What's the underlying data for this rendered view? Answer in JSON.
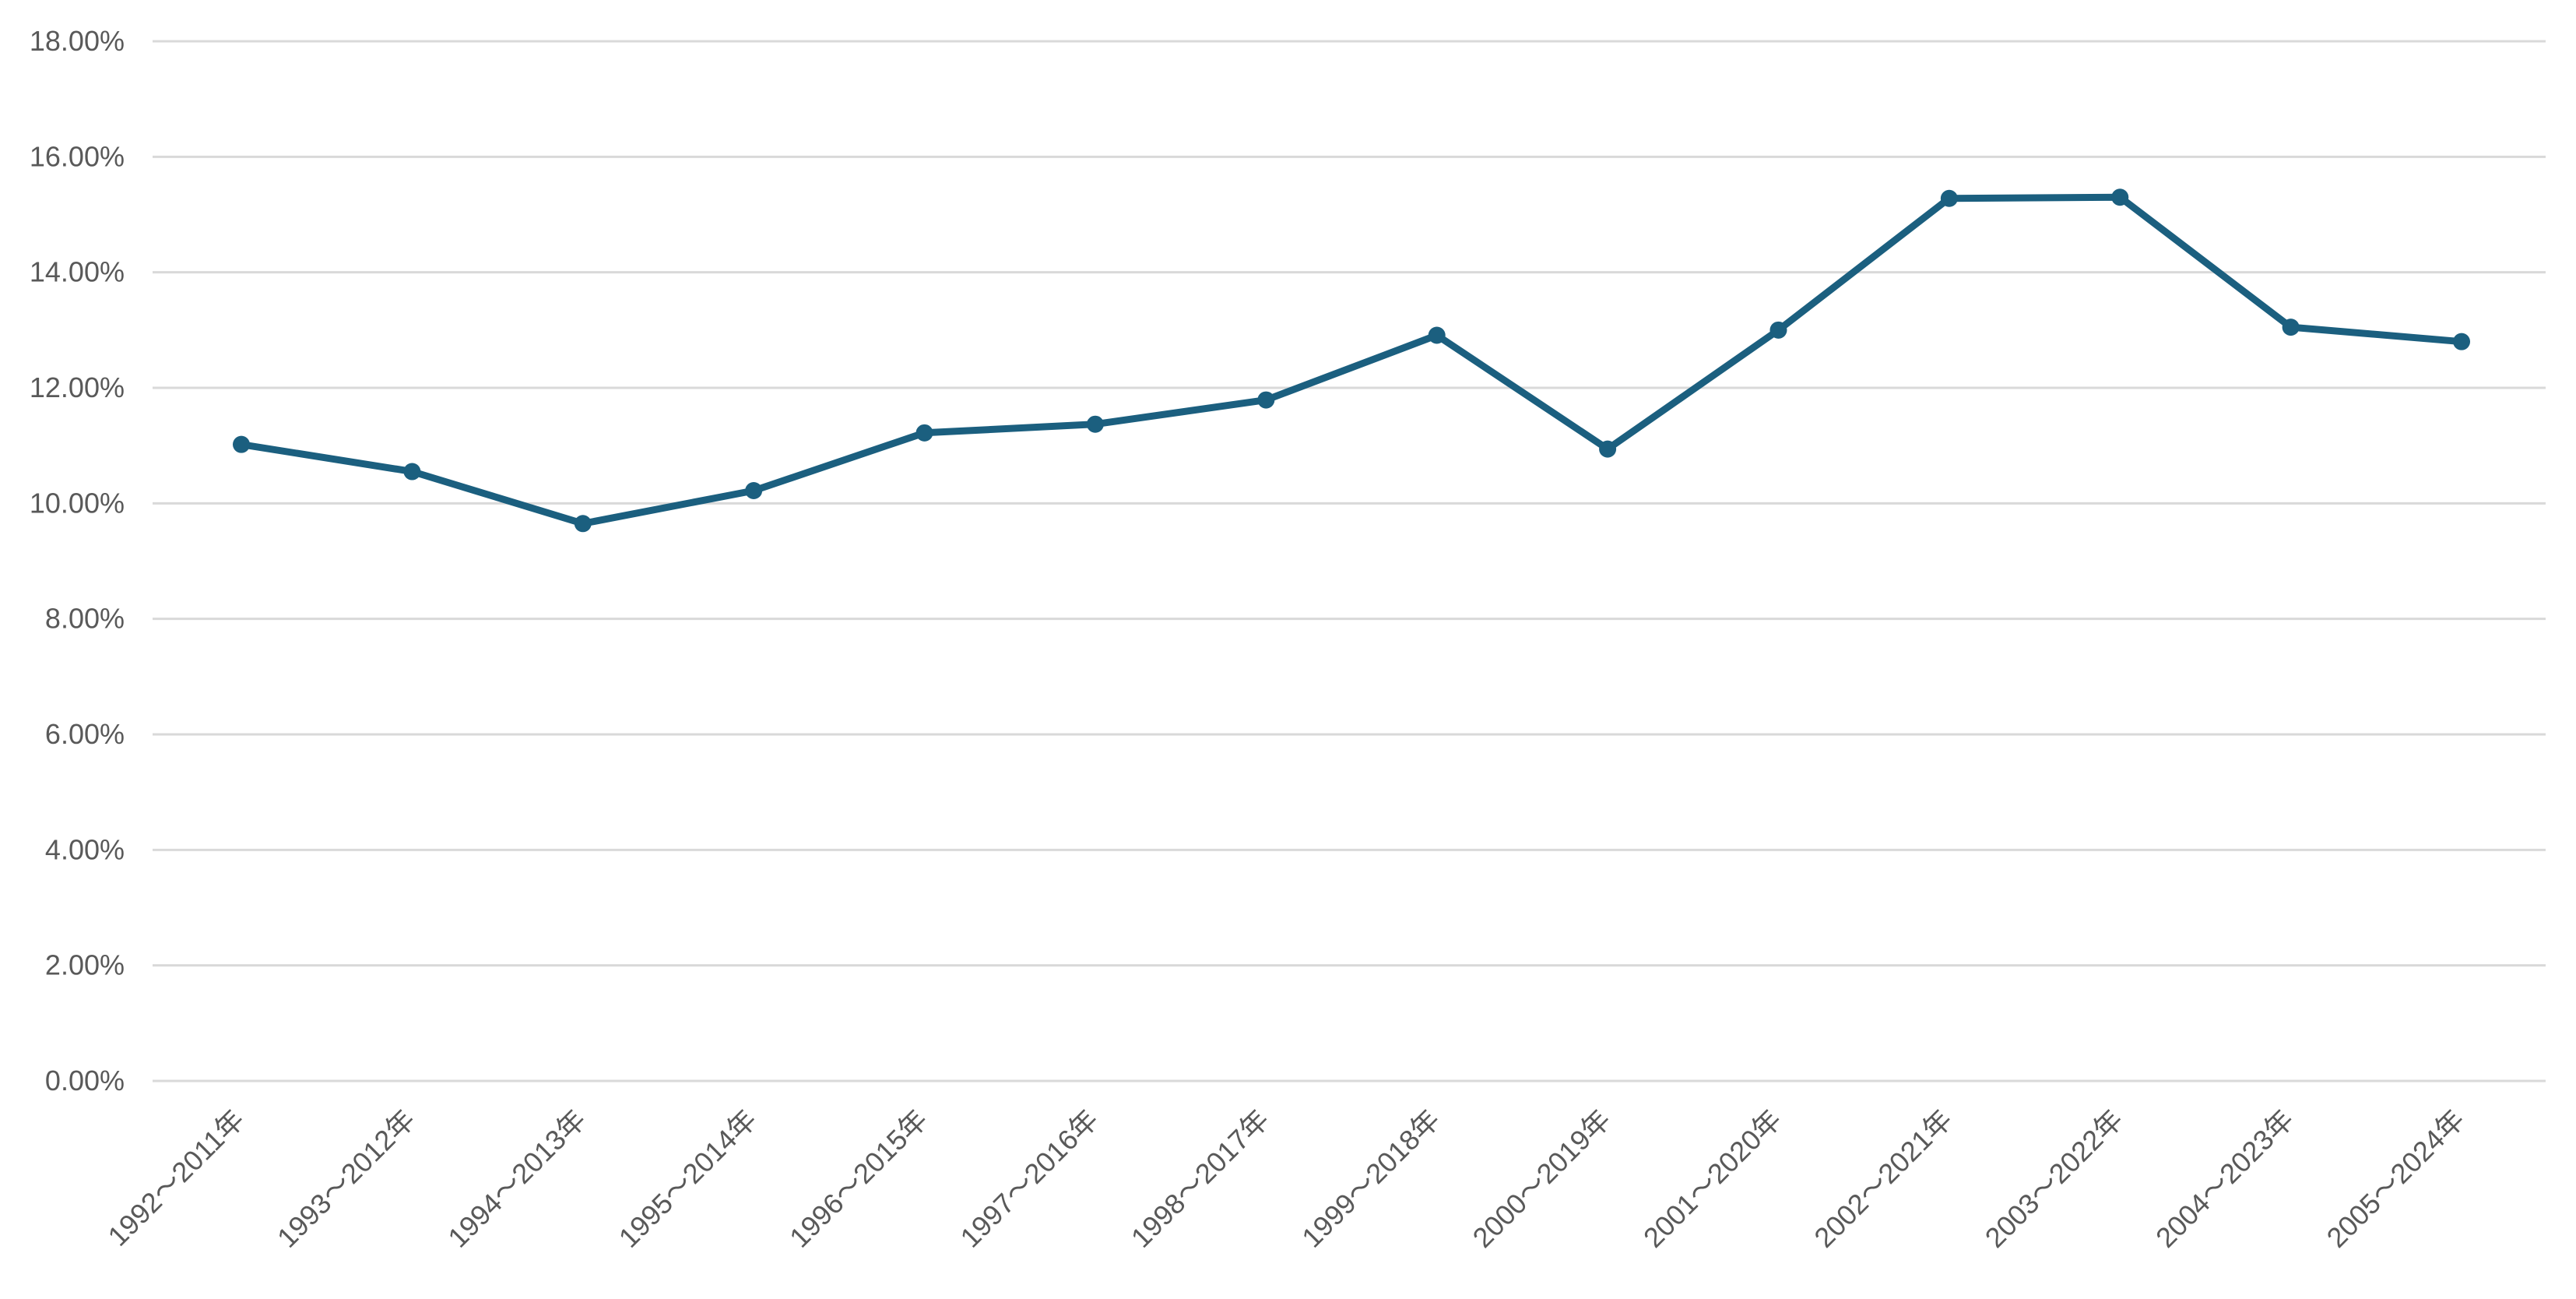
{
  "chart_data": {
    "type": "line",
    "title": "",
    "xlabel": "",
    "ylabel": "",
    "ylim": [
      0,
      18
    ],
    "y_tick_step": 2,
    "y_tick_format": "percent_2dp",
    "y_ticks": [
      "0.00%",
      "2.00%",
      "4.00%",
      "6.00%",
      "8.00%",
      "10.00%",
      "12.00%",
      "14.00%",
      "16.00%",
      "18.00%"
    ],
    "grid": true,
    "legend": "none",
    "categories": [
      "1992～2011年",
      "1993～2012年",
      "1994～2013年",
      "1995～2014年",
      "1996～2015年",
      "1997～2016年",
      "1998～2017年",
      "1999～2018年",
      "2000～2019年",
      "2001～2020年",
      "2002～2021年",
      "2003～2022年",
      "2004～2023年",
      "2005～2024年"
    ],
    "series": [
      {
        "color": "#1b5f7f",
        "markers": true,
        "values": [
          11.02,
          10.55,
          9.65,
          10.22,
          11.22,
          11.37,
          11.79,
          12.91,
          10.94,
          13.0,
          15.28,
          15.3,
          13.05,
          12.8
        ]
      }
    ]
  }
}
